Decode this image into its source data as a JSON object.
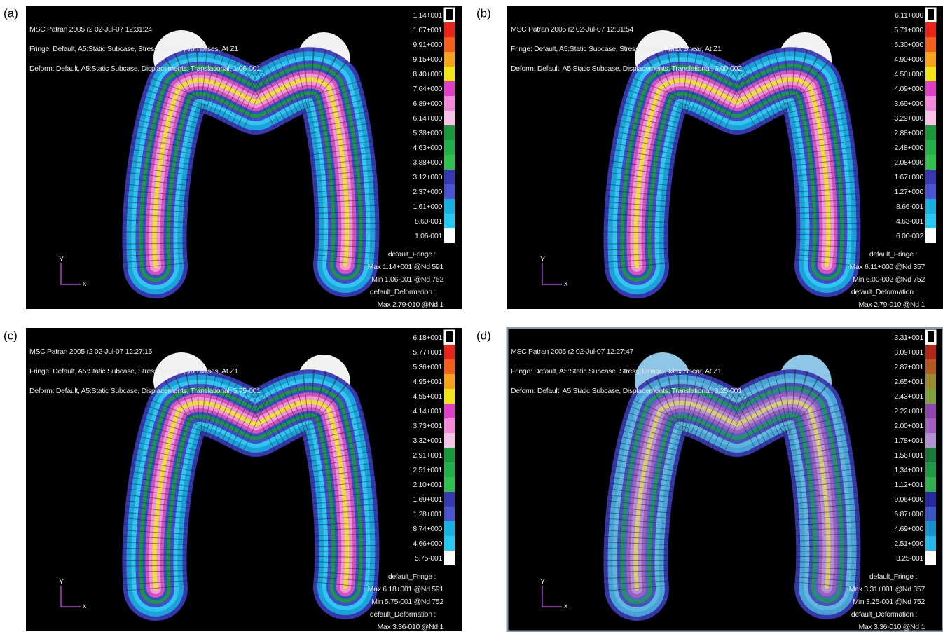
{
  "panels": [
    {
      "label": "(a)",
      "header": [
        "MSC Patran 2005 r2 02-Jul-07 12:31:24",
        "Fringe: Default, A5:Static Subcase, Stress Tensor, , von Mises, At Z1",
        "Deform: Default, A5:Static Subcase, Displacements, Translational, 1.06-001"
      ],
      "legend": [
        "1.14+001",
        "1.07+001",
        "9.91+000",
        "9.15+000",
        "8.40+000",
        "7.64+000",
        "6.89+000",
        "6.14+000",
        "5.38+000",
        "4.63+000",
        "3.88+000",
        "3.12+000",
        "2.37+000",
        "1.61+000",
        "8.60-001",
        "1.06-001"
      ],
      "footer": [
        "default_Fringe :",
        "Max 1.14+001 @Nd 591",
        "Min 1.06-001 @Nd 752",
        "default_Deformation :",
        "Max 2.79-010 @Nd 1"
      ],
      "axes": {
        "y": "Y",
        "x": "x"
      }
    },
    {
      "label": "(b)",
      "header": [
        "MSC Patran 2005 r2 02-Jul-07 12:31:54",
        "Fringe: Default, A5:Static Subcase, Stress Tensor, , Max Shear, At Z1",
        "Deform: Default, A5:Static Subcase, Displacements, Translational, 6.00-002"
      ],
      "legend": [
        "6.11+000",
        "5.71+000",
        "5.30+000",
        "4.90+000",
        "4.50+000",
        "4.09+000",
        "3.69+000",
        "3.29+000",
        "2.88+000",
        "2.48+000",
        "2.08+000",
        "1.67+000",
        "1.27+000",
        "8.66-001",
        "4.63-001",
        "6.00-002"
      ],
      "footer": [
        "default_Fringe :",
        "Max 6.11+000 @Nd 357",
        "Min 6.00-002 @Nd 752",
        "default_Deformation :",
        "Max 2.79-010 @Nd 1"
      ],
      "axes": {
        "y": "Y",
        "x": "x"
      }
    },
    {
      "label": "(c)",
      "header": [
        "MSC Patran 2005 r2 02-Jul-07 12:27:15",
        "Fringe: Default, A5:Static Subcase, Stress Tensor, , von Mises, At Z1",
        "Deform: Default, A5:Static Subcase, Displacements, Translational, 5.75-001"
      ],
      "legend": [
        "6.18+001",
        "5.77+001",
        "5.36+001",
        "4.95+001",
        "4.55+001",
        "4.14+001",
        "3.73+001",
        "3.32+001",
        "2.91+001",
        "2.51+001",
        "2.10+001",
        "1.69+001",
        "1.28+001",
        "8.74+000",
        "4.66+000",
        "5.75-001"
      ],
      "footer": [
        "default_Fringe :",
        "Max 6.18+001 @Nd 591",
        "Min 5.75-001 @Nd 752",
        "default_Deformation :",
        "Max 3.36-010 @Nd 1"
      ],
      "axes": {
        "y": "Y",
        "x": "x"
      }
    },
    {
      "label": "(d)",
      "header": [
        "MSC Patran 2005 r2 02-Jul-07 12:27:47",
        "Fringe: Default, A5:Static Subcase, Stress Tensor, , Max Shear, At Z1",
        "Deform: Default, A5:Static Subcase, Displacements, Translational, 3.25-001"
      ],
      "legend": [
        "3.31+001",
        "3.09+001",
        "2.87+001",
        "2.65+001",
        "2.43+001",
        "2.22+001",
        "2.00+001",
        "1.78+001",
        "1.56+001",
        "1.34+001",
        "1.12+001",
        "9.06+000",
        "6.87+000",
        "4.69+000",
        "2.51+000",
        "3.25-001"
      ],
      "footer": [
        "default_Fringe :",
        "Max 3.31+001 @Nd 357",
        "Min 3.25-001 @Nd 752",
        "default_Deformation :",
        "Max 3.36-010 @Nd 1"
      ],
      "axes": {
        "y": "Y",
        "x": "x"
      }
    }
  ]
}
